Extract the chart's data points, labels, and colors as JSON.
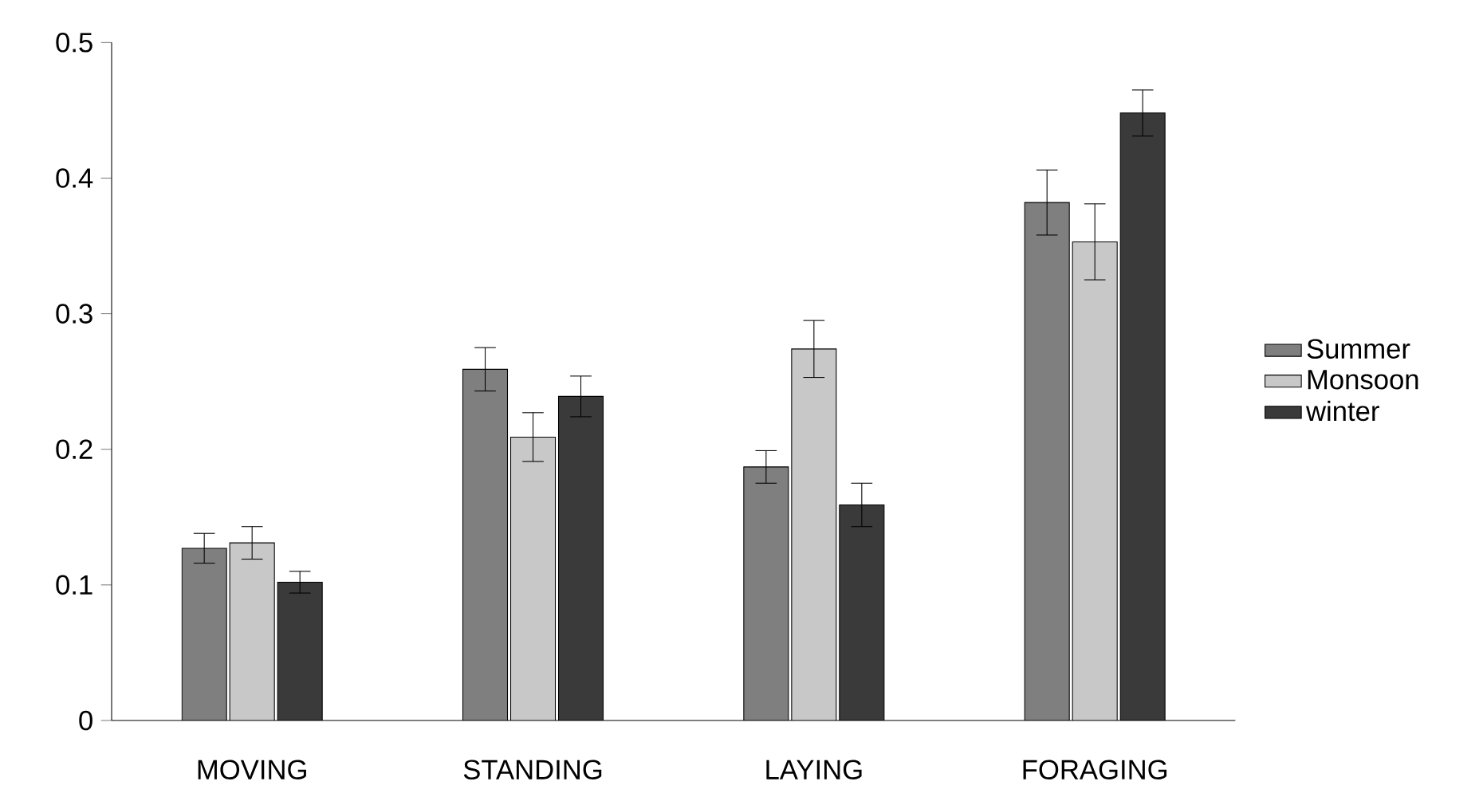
{
  "chart_data": {
    "type": "bar",
    "categories": [
      "MOVING",
      "STANDING",
      "LAYING",
      "FORAGING"
    ],
    "series": [
      {
        "name": "Summer",
        "color": "#7f7f7f",
        "values": [
          0.127,
          0.259,
          0.187,
          0.382
        ],
        "errors": [
          0.011,
          0.016,
          0.012,
          0.024
        ]
      },
      {
        "name": "Monsoon",
        "color": "#c8c8c8",
        "values": [
          0.131,
          0.209,
          0.274,
          0.353
        ],
        "errors": [
          0.012,
          0.018,
          0.021,
          0.028
        ]
      },
      {
        "name": "winter",
        "color": "#3a3a3a",
        "values": [
          0.102,
          0.239,
          0.159,
          0.448
        ],
        "errors": [
          0.008,
          0.015,
          0.016,
          0.017
        ]
      }
    ],
    "ylim": [
      0,
      0.5
    ],
    "yticks": [
      0,
      0.1,
      0.2,
      0.3,
      0.4,
      0.5
    ],
    "grid": false,
    "legend": "right"
  }
}
